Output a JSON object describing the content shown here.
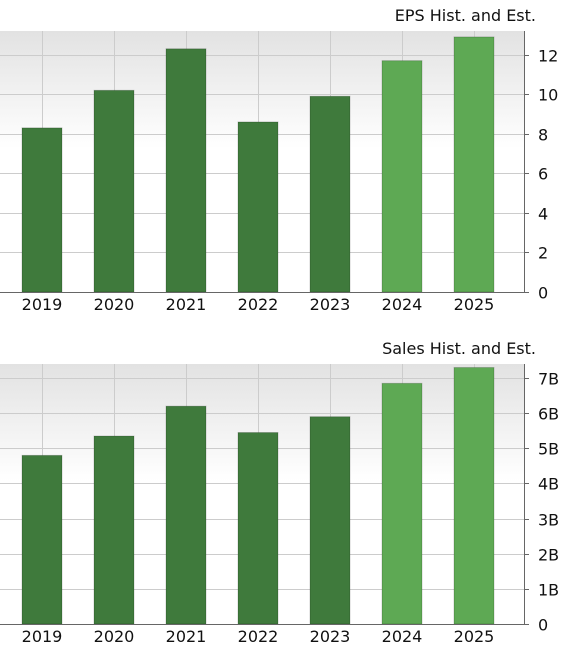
{
  "colors": {
    "historical": "#3f7a3c",
    "estimate": "#5ea954",
    "grid": "#cccccc",
    "axis": "#666666",
    "plot_gradient_top": "#e2e2e2",
    "plot_gradient_bottom": "#ffffff"
  },
  "chart_data": [
    {
      "type": "bar",
      "title": "EPS Hist. and Est.",
      "categories": [
        "2019",
        "2020",
        "2021",
        "2022",
        "2023",
        "2024",
        "2025"
      ],
      "values": [
        8.3,
        10.2,
        12.3,
        8.6,
        9.9,
        11.7,
        12.9
      ],
      "estimate_from_index": 5,
      "ylim": [
        0,
        13.2
      ],
      "yticks": [
        0,
        2,
        4,
        6,
        8,
        10,
        12
      ],
      "ytick_labels": [
        "0",
        "2",
        "4",
        "6",
        "8",
        "10",
        "12"
      ],
      "xlabel": "",
      "ylabel": "",
      "grid": true,
      "y_axis_side": "right"
    },
    {
      "type": "bar",
      "title": "Sales Hist. and Est.",
      "categories": [
        "2019",
        "2020",
        "2021",
        "2022",
        "2023",
        "2024",
        "2025"
      ],
      "values": [
        4.8,
        5.35,
        6.2,
        5.45,
        5.9,
        6.85,
        7.3
      ],
      "estimate_from_index": 5,
      "ylim": [
        0,
        7.4
      ],
      "yticks": [
        0,
        1,
        2,
        3,
        4,
        5,
        6,
        7
      ],
      "ytick_labels": [
        "0",
        "1B",
        "2B",
        "3B",
        "4B",
        "5B",
        "6B",
        "7B"
      ],
      "xlabel": "",
      "ylabel": "",
      "grid": true,
      "y_axis_side": "right"
    }
  ]
}
